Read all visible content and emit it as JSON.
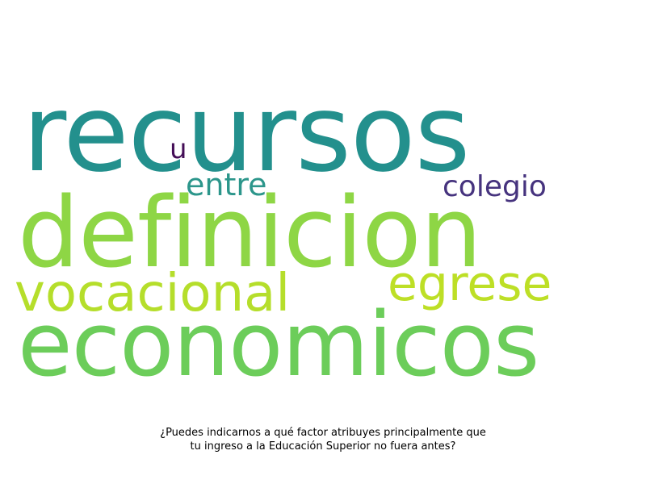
{
  "wordcloud": {
    "words": [
      {
        "key": "recursos",
        "text": "recursos",
        "color": "#23908d"
      },
      {
        "key": "definicion",
        "text": "definicion",
        "color": "#8ed645"
      },
      {
        "key": "economicos",
        "text": "economicos",
        "color": "#6ccd5a"
      },
      {
        "key": "vocacional",
        "text": "vocacional",
        "color": "#b5de2b"
      },
      {
        "key": "egrese",
        "text": "egrese",
        "color": "#bddf26"
      },
      {
        "key": "colegio",
        "text": "colegio",
        "color": "#46337e"
      },
      {
        "key": "entre",
        "text": "entre",
        "color": "#2c968b"
      },
      {
        "key": "u",
        "text": "u",
        "color": "#440e57"
      }
    ]
  },
  "caption": {
    "line1": "¿Puedes indicarnos a qué factor atribuyes principalmente que",
    "line2": "tu ingreso a la Educación Superior no fuera antes?"
  }
}
